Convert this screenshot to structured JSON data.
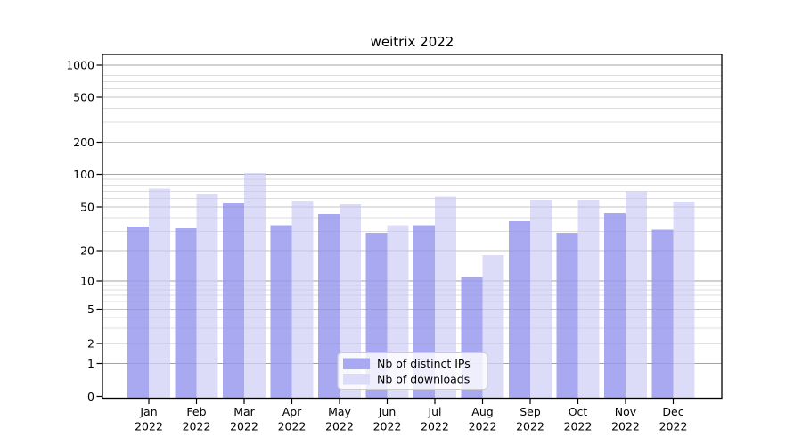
{
  "figure": {
    "title": "weitrix 2022"
  },
  "chart_data": {
    "type": "bar",
    "title": "weitrix 2022",
    "categories": [
      "Jan 2022",
      "Feb 2022",
      "Mar 2022",
      "Apr 2022",
      "May 2022",
      "Jun 2022",
      "Jul 2022",
      "Aug 2022",
      "Sep 2022",
      "Oct 2022",
      "Nov 2022",
      "Dec 2022"
    ],
    "months": [
      "Jan",
      "Feb",
      "Mar",
      "Apr",
      "May",
      "Jun",
      "Jul",
      "Aug",
      "Sep",
      "Oct",
      "Nov",
      "Dec"
    ],
    "year_label": "2022",
    "series": [
      {
        "name": "Nb of distinct IPs",
        "color": "#a9a9f1",
        "values": [
          33,
          32,
          54,
          34,
          43,
          29,
          34,
          11,
          37,
          29,
          44,
          31
        ]
      },
      {
        "name": "Nb of downloads",
        "color": "#dcdcf8",
        "values": [
          74,
          65,
          103,
          57,
          53,
          34,
          62,
          18,
          58,
          58,
          70,
          56
        ]
      }
    ],
    "y_ticks": [
      0,
      1,
      2,
      5,
      10,
      20,
      50,
      100,
      200,
      500,
      1000
    ],
    "y_scale": "log-like (0,1,2,5 ticks per decade)",
    "ylim": [
      0,
      1250
    ],
    "xlabel": "",
    "ylabel": "",
    "grid": true,
    "legend_position": "inside-bottom-center"
  },
  "colors": {
    "ips_bar": "#a9a9f1",
    "downloads_bar": "#dcdcf8",
    "grid_power10": "#b3b3b3",
    "grid_major": "#d9d9d9",
    "grid_minor": "#efefef",
    "frame": "#000000",
    "legend_border": "#cccccc",
    "legend_background": "rgba(255,255,255,0.8)"
  }
}
